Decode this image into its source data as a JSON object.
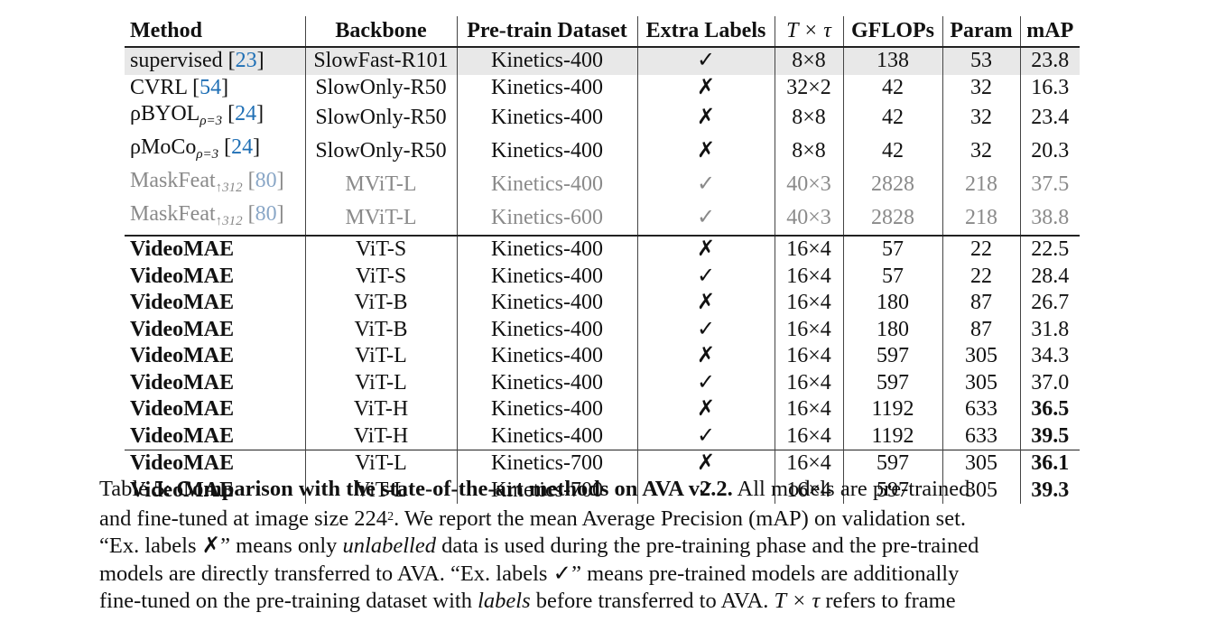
{
  "headers": [
    "Method",
    "Backbone",
    "Pre-train Dataset",
    "Extra Labels",
    "T × τ",
    "GFLOPs",
    "Param",
    "mAP"
  ],
  "rows_top": [
    {
      "method": "supervised",
      "sub": "",
      "ref": "23",
      "backbone": "SlowFast-R101",
      "dataset": "Kinetics-400",
      "labels": "✓",
      "ttau": "8×8",
      "gflops": "138",
      "param": "53",
      "map": "23.8"
    },
    {
      "method": "CVRL",
      "sub": "",
      "ref": "54",
      "backbone": "SlowOnly-R50",
      "dataset": "Kinetics-400",
      "labels": "✗",
      "ttau": "32×2",
      "gflops": "42",
      "param": "32",
      "map": "16.3"
    },
    {
      "method": "ρBYOL",
      "sub": "ρ=3",
      "ref": "24",
      "backbone": "SlowOnly-R50",
      "dataset": "Kinetics-400",
      "labels": "✗",
      "ttau": "8×8",
      "gflops": "42",
      "param": "32",
      "map": "23.4"
    },
    {
      "method": "ρMoCo",
      "sub": "ρ=3",
      "ref": "24",
      "backbone": "SlowOnly-R50",
      "dataset": "Kinetics-400",
      "labels": "✗",
      "ttau": "8×8",
      "gflops": "42",
      "param": "32",
      "map": "20.3"
    },
    {
      "method": "MaskFeat",
      "sub": "↑312",
      "ref": "80",
      "backbone": "MViT-L",
      "dataset": "Kinetics-400",
      "labels": "✓",
      "ttau": "40×3",
      "gflops": "2828",
      "param": "218",
      "map": "37.5"
    },
    {
      "method": "MaskFeat",
      "sub": "↑312",
      "ref": "80",
      "backbone": "MViT-L",
      "dataset": "Kinetics-600",
      "labels": "✓",
      "ttau": "40×3",
      "gflops": "2828",
      "param": "218",
      "map": "38.8"
    }
  ],
  "rows_mid": [
    {
      "method": "VideoMAE",
      "backbone": "ViT-S",
      "dataset": "Kinetics-400",
      "labels": "✗",
      "ttau": "16×4",
      "gflops": "57",
      "param": "22",
      "map": "22.5"
    },
    {
      "method": "VideoMAE",
      "backbone": "ViT-S",
      "dataset": "Kinetics-400",
      "labels": "✓",
      "ttau": "16×4",
      "gflops": "57",
      "param": "22",
      "map": "28.4"
    },
    {
      "method": "VideoMAE",
      "backbone": "ViT-B",
      "dataset": "Kinetics-400",
      "labels": "✗",
      "ttau": "16×4",
      "gflops": "180",
      "param": "87",
      "map": "26.7"
    },
    {
      "method": "VideoMAE",
      "backbone": "ViT-B",
      "dataset": "Kinetics-400",
      "labels": "✓",
      "ttau": "16×4",
      "gflops": "180",
      "param": "87",
      "map": "31.8"
    },
    {
      "method": "VideoMAE",
      "backbone": "ViT-L",
      "dataset": "Kinetics-400",
      "labels": "✗",
      "ttau": "16×4",
      "gflops": "597",
      "param": "305",
      "map": "34.3"
    },
    {
      "method": "VideoMAE",
      "backbone": "ViT-L",
      "dataset": "Kinetics-400",
      "labels": "✓",
      "ttau": "16×4",
      "gflops": "597",
      "param": "305",
      "map": "37.0"
    },
    {
      "method": "VideoMAE",
      "backbone": "ViT-H",
      "dataset": "Kinetics-400",
      "labels": "✗",
      "ttau": "16×4",
      "gflops": "1192",
      "param": "633",
      "map": "36.5"
    },
    {
      "method": "VideoMAE",
      "backbone": "ViT-H",
      "dataset": "Kinetics-400",
      "labels": "✓",
      "ttau": "16×4",
      "gflops": "1192",
      "param": "633",
      "map": "39.5"
    }
  ],
  "rows_bottom": [
    {
      "method": "VideoMAE",
      "backbone": "ViT-L",
      "dataset": "Kinetics-700",
      "labels": "✗",
      "ttau": "16×4",
      "gflops": "597",
      "param": "305",
      "map": "36.1"
    },
    {
      "method": "VideoMAE",
      "backbone": "ViT-L",
      "dataset": "Kinetics-700",
      "labels": "✓",
      "ttau": "16×4",
      "gflops": "597",
      "param": "305",
      "map": "39.3"
    }
  ],
  "caption": {
    "label": "Table 5:",
    "bold_title": "Comparison with the state-of-the-art methods on AVA v2.2.",
    "l1_rest": "All models are pre-trained",
    "l2_a": "and fine-tuned at image size 224",
    "l2_sup": "2",
    "l2_b": ". We report the mean Average Precision (mAP) on validation set.",
    "l3_a": "“Ex. labels ✗” means only",
    "l3_it": "unlabelled",
    "l3_b": "data is used during the pre-training phase and the pre-trained",
    "l4": "models are directly transferred to AVA. “Ex. labels ✓” means pre-trained models are additionally",
    "l5_a": "fine-tuned on the pre-training dataset with",
    "l5_it": "labels",
    "l5_b": "before transferred to AVA.",
    "l5_math": "T × τ",
    "l5_c": "refers to frame"
  }
}
